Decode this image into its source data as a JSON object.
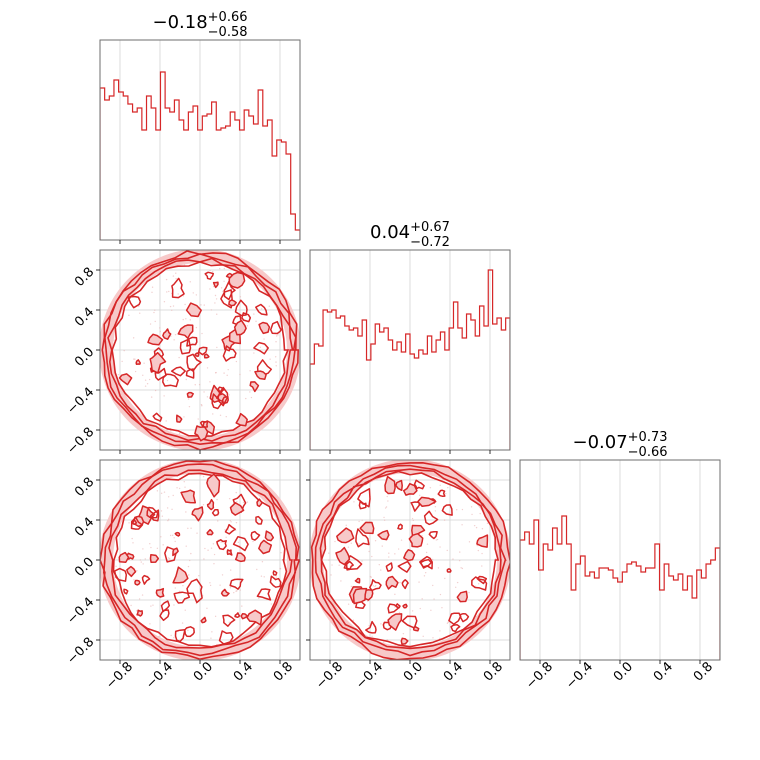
{
  "chart_data": {
    "type": "corner",
    "parameters": 3,
    "color": "#d62728",
    "fill_light": "#f7c9c9",
    "grid": true,
    "axis_range": [
      -1.0,
      1.0
    ],
    "ticks": [
      -0.8,
      -0.4,
      0.0,
      0.4,
      0.8
    ],
    "tick_labels": [
      "−0.8",
      "−0.4",
      "0.0",
      "0.4",
      "0.8"
    ],
    "titles": [
      {
        "value": "−0.18",
        "upper": "+0.66",
        "lower": "−0.58"
      },
      {
        "value": "0.04",
        "upper": "+0.67",
        "lower": "−0.72"
      },
      {
        "value": "−0.07",
        "upper": "+0.73",
        "lower": "−0.66"
      }
    ],
    "histograms": [
      {
        "bin_range": [
          -1.0,
          1.0
        ],
        "values": [
          0.76,
          0.7,
          0.72,
          0.8,
          0.74,
          0.72,
          0.68,
          0.64,
          0.66,
          0.55,
          0.72,
          0.66,
          0.55,
          0.84,
          0.66,
          0.64,
          0.7,
          0.6,
          0.55,
          0.64,
          0.67,
          0.55,
          0.62,
          0.63,
          0.69,
          0.55,
          0.56,
          0.57,
          0.64,
          0.6,
          0.55,
          0.65,
          0.62,
          0.58,
          0.75,
          0.57,
          0.6,
          0.42,
          0.5,
          0.49,
          0.43,
          0.13,
          0.05
        ]
      },
      {
        "bin_range": [
          -1.0,
          1.0
        ],
        "values": [
          0.43,
          0.53,
          0.52,
          0.7,
          0.69,
          0.7,
          0.66,
          0.67,
          0.62,
          0.6,
          0.61,
          0.57,
          0.65,
          0.45,
          0.53,
          0.63,
          0.59,
          0.61,
          0.55,
          0.5,
          0.54,
          0.49,
          0.58,
          0.48,
          0.46,
          0.5,
          0.48,
          0.57,
          0.49,
          0.55,
          0.59,
          0.5,
          0.61,
          0.74,
          0.61,
          0.56,
          0.68,
          0.65,
          0.57,
          0.72,
          0.62,
          0.9,
          0.63,
          0.66,
          0.6,
          0.66
        ]
      },
      {
        "bin_range": [
          -1.0,
          1.0
        ],
        "values": [
          0.6,
          0.64,
          0.58,
          0.7,
          0.45,
          0.58,
          0.55,
          0.66,
          0.58,
          0.72,
          0.58,
          0.35,
          0.48,
          0.52,
          0.42,
          0.44,
          0.41,
          0.46,
          0.46,
          0.45,
          0.41,
          0.39,
          0.44,
          0.48,
          0.49,
          0.47,
          0.44,
          0.46,
          0.46,
          0.58,
          0.35,
          0.48,
          0.42,
          0.4,
          0.43,
          0.35,
          0.42,
          0.31,
          0.45,
          0.41,
          0.48,
          0.5,
          0.56
        ]
      }
    ],
    "scatter_panels": [
      {
        "x_param": 0,
        "y_param": 1,
        "support": "unit-disk"
      },
      {
        "x_param": 0,
        "y_param": 2,
        "support": "unit-disk"
      },
      {
        "x_param": 1,
        "y_param": 2,
        "support": "unit-disk"
      }
    ]
  }
}
